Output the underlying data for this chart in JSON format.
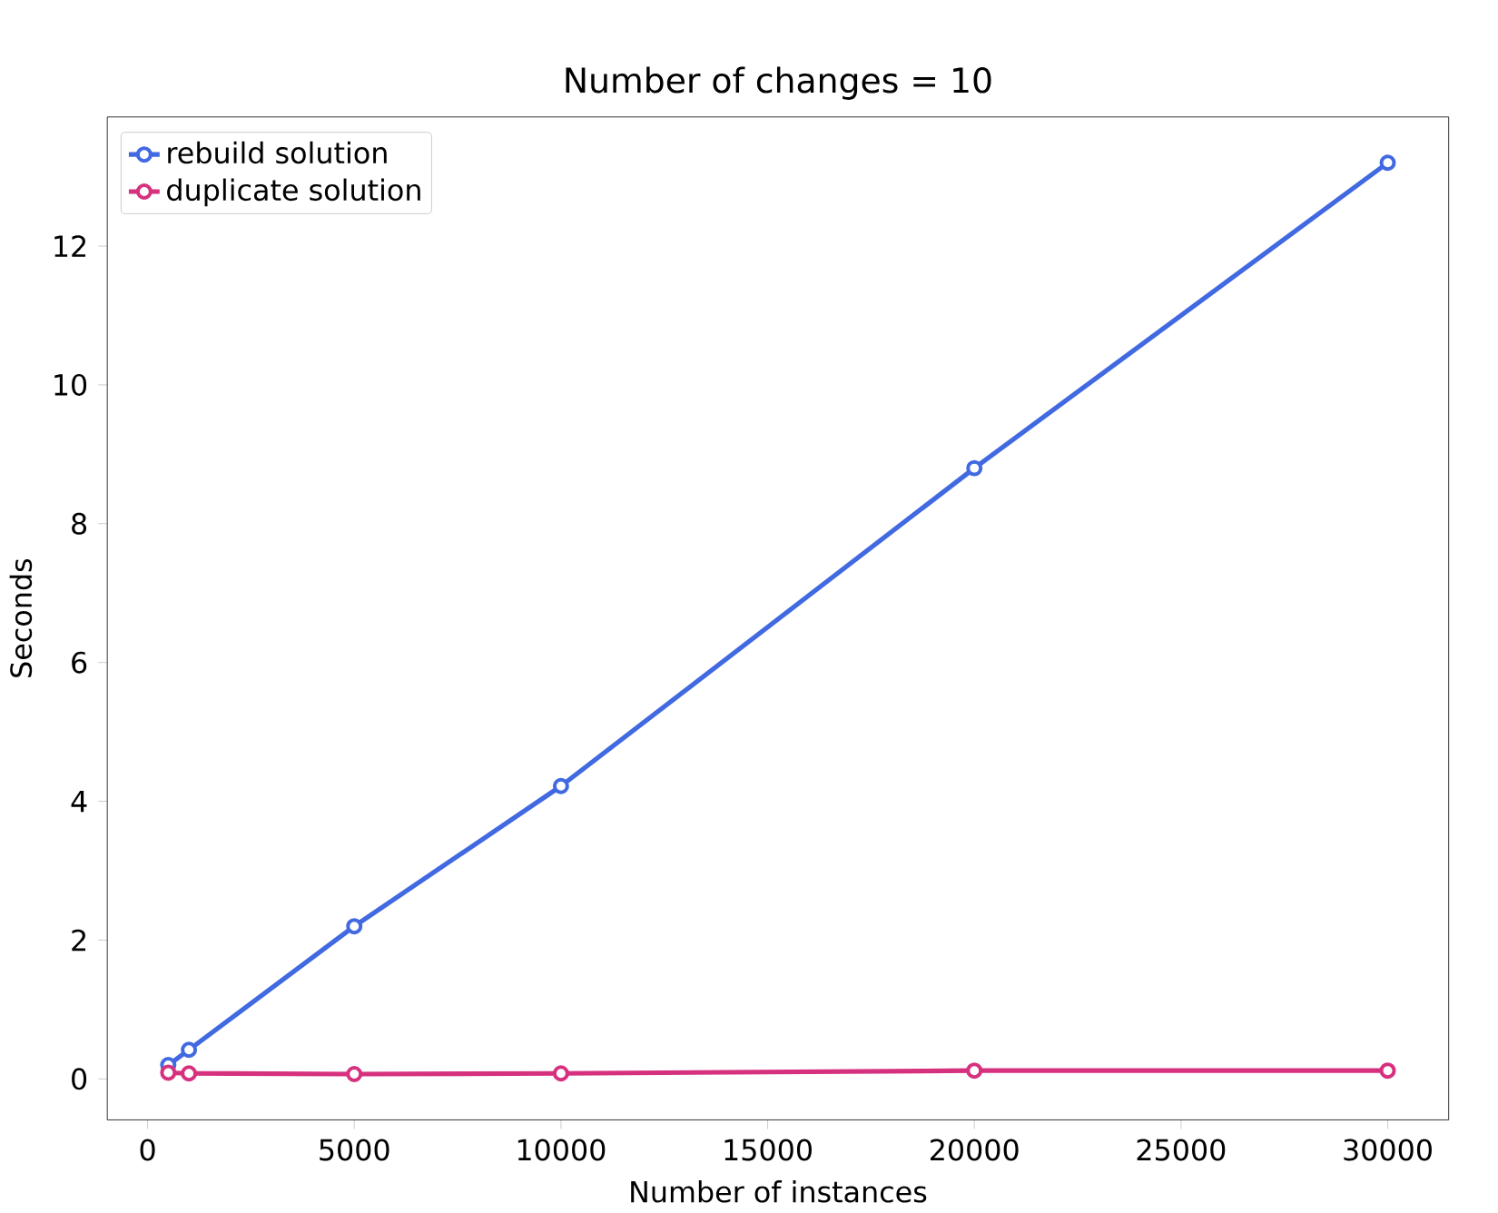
{
  "chart_data": {
    "type": "line",
    "title": "Number of changes = 10",
    "xlabel": "Number of instances",
    "ylabel": "Seconds",
    "x": [
      500,
      1000,
      5000,
      10000,
      20000,
      30000
    ],
    "series": [
      {
        "name": "rebuild solution",
        "color": "#4169e1",
        "values": [
          0.2,
          0.42,
          2.2,
          4.22,
          8.8,
          13.2
        ]
      },
      {
        "name": "duplicate solution",
        "color": "#d6317f",
        "values": [
          0.09,
          0.08,
          0.07,
          0.08,
          0.12,
          0.12
        ]
      }
    ],
    "xlim": [
      -975,
      31475
    ],
    "ylim": [
      -0.59,
      13.86
    ],
    "xticks": [
      0,
      5000,
      10000,
      15000,
      20000,
      25000,
      30000
    ],
    "yticks": [
      0,
      2,
      4,
      6,
      8,
      10,
      12
    ],
    "grid": false,
    "legend": "top left",
    "marker": "circle",
    "line_style": "solid"
  }
}
